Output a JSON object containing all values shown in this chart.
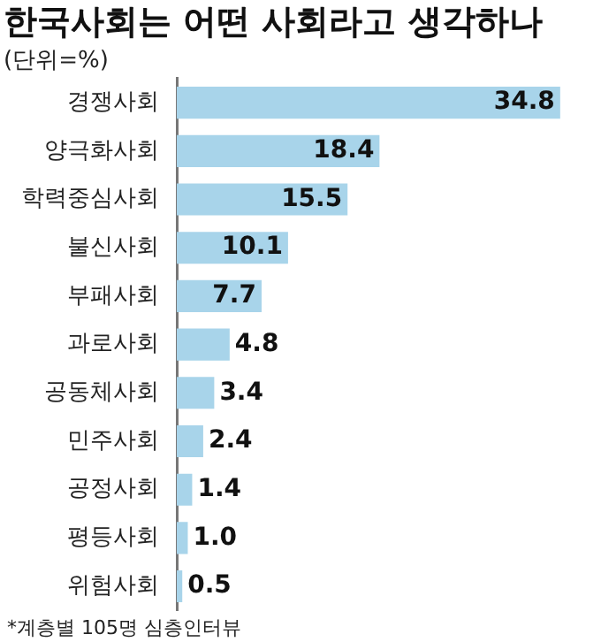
{
  "chart_data": {
    "type": "bar",
    "orientation": "horizontal",
    "title": "한국사회는 어떤 사회라고 생각하나",
    "subtitle": "(단위=%)",
    "categories": [
      "경쟁사회",
      "양극화사회",
      "학력중심사회",
      "불신사회",
      "부패사회",
      "과로사회",
      "공동체사회",
      "민주사회",
      "공정사회",
      "평등사회",
      "위험사회"
    ],
    "values": [
      34.8,
      18.4,
      15.5,
      10.1,
      7.7,
      4.8,
      3.4,
      2.4,
      1.4,
      1.0,
      0.5
    ],
    "value_labels": [
      "34.8",
      "18.4",
      "15.5",
      "10.1",
      "7.7",
      "4.8",
      "3.4",
      "2.4",
      "1.4",
      "1.0",
      "0.5"
    ],
    "color": "#a8d4ea",
    "data_labels": true,
    "legend": false,
    "annotations": [
      "*계층별 105명 심층인터뷰"
    ]
  }
}
